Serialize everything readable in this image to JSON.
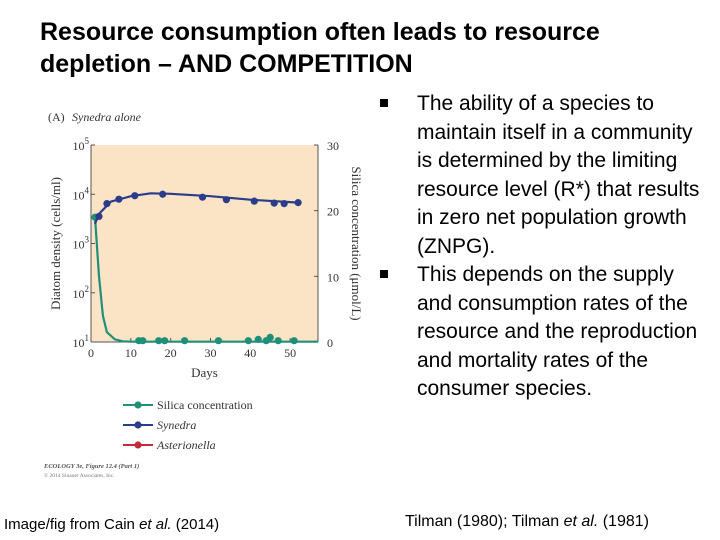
{
  "slide": {
    "title_lines": [
      "Resource consumption often leads to resource",
      "depletion – AND COMPETITION"
    ],
    "bullets": [
      "The ability of a species to maintain itself in a community is determined by the limiting resource level (R*) that results in zero net population growth (ZNPG).",
      "This depends on the supply and consumption rates of the resource and the reproduction and mortality rates of the consumer species."
    ],
    "footer_left": {
      "prefix": "Image/fig from Cain ",
      "italic": "et al.",
      "suffix": " (2014)"
    },
    "footer_right": {
      "part1": "Tilman (1980); Tilman ",
      "italic": "et al.",
      "part2": " (1981)"
    }
  },
  "chart_data": {
    "type": "line",
    "panel_label": "(A)",
    "title": "Synedra alone",
    "xlabel": "Days",
    "ylabel_left": "Diatom density (cells/ml)",
    "ylabel_right": "Silica concentration (μmol/L)",
    "xlim": [
      0,
      57
    ],
    "x_ticks": [
      "0",
      "10",
      "20",
      "30",
      "40",
      "50"
    ],
    "y_left_log_range": [
      1,
      5
    ],
    "y_left_ticks": [
      {
        "base": "10",
        "exp": "1",
        "value": 1
      },
      {
        "base": "10",
        "exp": "2",
        "value": 2
      },
      {
        "base": "10",
        "exp": "3",
        "value": 3
      },
      {
        "base": "10",
        "exp": "4",
        "value": 4
      },
      {
        "base": "10",
        "exp": "5",
        "value": 5
      }
    ],
    "y_right_range": [
      0,
      30
    ],
    "y_right_ticks": [
      "0",
      "10",
      "20",
      "30"
    ],
    "background_color": "#fbe3c6",
    "series": [
      {
        "name": "Silica concentration",
        "axis": "right",
        "color": "#1f8f78",
        "line": [
          [
            1,
            19
          ],
          [
            2,
            10
          ],
          [
            3,
            4
          ],
          [
            4,
            1.5
          ],
          [
            6,
            0.4
          ],
          [
            8,
            0.1
          ],
          [
            10,
            0.05
          ],
          [
            20,
            0.05
          ],
          [
            30,
            0.05
          ],
          [
            40,
            0.05
          ],
          [
            50,
            0.05
          ],
          [
            57,
            0.05
          ]
        ],
        "points": [
          [
            1,
            19
          ],
          [
            12,
            0.2
          ],
          [
            13,
            0.2
          ],
          [
            17,
            0.2
          ],
          [
            18.5,
            0.2
          ],
          [
            23.5,
            0.2
          ],
          [
            32,
            0.2
          ],
          [
            39.5,
            0.2
          ],
          [
            42,
            0.4
          ],
          [
            44,
            0.2
          ],
          [
            45,
            0.7
          ],
          [
            47,
            0.2
          ],
          [
            51,
            0.2
          ]
        ]
      },
      {
        "name": "Synedra",
        "axis": "left",
        "color": "#2a3c8a",
        "line": [
          [
            1,
            3.4
          ],
          [
            2,
            3.6
          ],
          [
            5,
            3.85
          ],
          [
            10,
            3.96
          ],
          [
            15,
            4.02
          ],
          [
            20,
            4.01
          ],
          [
            30,
            3.96
          ],
          [
            40,
            3.89
          ],
          [
            50,
            3.84
          ],
          [
            52,
            3.83
          ]
        ],
        "points": [
          [
            2,
            3.55
          ],
          [
            4,
            3.81
          ],
          [
            7,
            3.9
          ],
          [
            11,
            3.97
          ],
          [
            18,
            4.0
          ],
          [
            28,
            3.94
          ],
          [
            34,
            3.89
          ],
          [
            41,
            3.86
          ],
          [
            46,
            3.82
          ],
          [
            48.5,
            3.81
          ],
          [
            52,
            3.83
          ]
        ]
      },
      {
        "name": "Asterionella",
        "color": "#c52a3a",
        "line": [],
        "points": []
      }
    ],
    "caption": "ECOLOGY 3e, Figure 12.4 (Part 1)",
    "copyright": "© 2014 Sinauer Associates, Inc."
  }
}
